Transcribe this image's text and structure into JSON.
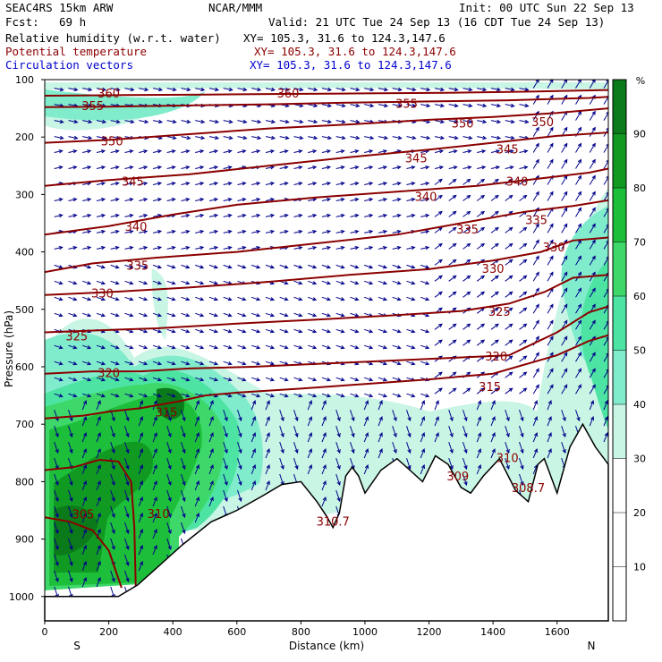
{
  "header": {
    "model": "SEAC4RS 15km ARW",
    "org": "NCAR/MMM",
    "init": "Init: 00 UTC Sun 22 Sep 13",
    "fcst_label": "Fcst:",
    "fcst_value": "69 h",
    "valid": "Valid: 21 UTC Tue 24 Sep 13 (16 CDT Tue 24 Sep 13)",
    "fields": [
      {
        "name": "Relative humidity (w.r.t. water)",
        "xy": "XY= 105.3, 31.6 to 124.3,147.6"
      },
      {
        "name": "Potential temperature",
        "xy": "XY= 105.3, 31.6 to 124.3,147.6"
      },
      {
        "name": "Circulation vectors",
        "xy": "XY= 105.3, 31.6 to 124.3,147.6"
      }
    ]
  },
  "colors": {
    "theta_contour": "#8b0000",
    "vectors": "#00008b",
    "terrain": "#000000"
  },
  "chart_data": {
    "type": "heatmap",
    "xlabel": "Distance (km)",
    "ylabel": "Pressure (hPa)",
    "xlim": [
      0,
      1760
    ],
    "ylim": [
      1000,
      100
    ],
    "x_ticks": [
      "0",
      "200",
      "400",
      "600",
      "800",
      "1000",
      "1200",
      "1400",
      "1600"
    ],
    "x_tick_values": [
      0,
      200,
      400,
      600,
      800,
      1000,
      1200,
      1400,
      1600
    ],
    "y_ticks": [
      "100",
      "200",
      "300",
      "400",
      "500",
      "600",
      "700",
      "800",
      "900",
      "1000"
    ],
    "y_tick_values": [
      100,
      200,
      300,
      400,
      500,
      600,
      700,
      800,
      900,
      1000
    ],
    "endpoints": {
      "left": "S",
      "right": "N"
    },
    "colorbar": {
      "unit": "%",
      "labels": [
        "10",
        "20",
        "30",
        "40",
        "50",
        "60",
        "70",
        "80",
        "90"
      ],
      "levels": [
        0,
        10,
        20,
        30,
        40,
        50,
        60,
        70,
        80,
        90,
        100
      ],
      "colors": [
        "#ffffff",
        "#ffffff",
        "#ffffff",
        "#c8f5e4",
        "#80eccc",
        "#4de4a3",
        "#3ed86a",
        "#1dbf3a",
        "#119a22",
        "#0a7a1a"
      ]
    },
    "theta_contours": [
      {
        "label": "305",
        "value": 305,
        "points": [
          [
            0,
            862
          ],
          [
            80,
            870
          ],
          [
            150,
            885
          ],
          [
            200,
            920
          ],
          [
            240,
            985
          ]
        ]
      },
      {
        "label": "310",
        "value": 310,
        "points": [
          [
            0,
            780
          ],
          [
            90,
            775
          ],
          [
            170,
            762
          ],
          [
            230,
            765
          ],
          [
            270,
            800
          ],
          [
            280,
            880
          ],
          [
            285,
            1000
          ]
        ]
      },
      {
        "label": "315",
        "value": 315,
        "points": [
          [
            0,
            690
          ],
          [
            120,
            685
          ],
          [
            200,
            678
          ],
          [
            300,
            672
          ],
          [
            420,
            660
          ],
          [
            500,
            650
          ],
          [
            600,
            645
          ],
          [
            800,
            638
          ],
          [
            1000,
            630
          ],
          [
            1200,
            622
          ],
          [
            1400,
            612
          ],
          [
            1600,
            580
          ],
          [
            1700,
            555
          ],
          [
            1760,
            545
          ]
        ]
      },
      {
        "label": "320",
        "value": 320,
        "points": [
          [
            0,
            612
          ],
          [
            150,
            608
          ],
          [
            300,
            608
          ],
          [
            450,
            603
          ],
          [
            650,
            600
          ],
          [
            850,
            595
          ],
          [
            1050,
            590
          ],
          [
            1250,
            585
          ],
          [
            1450,
            580
          ],
          [
            1600,
            540
          ],
          [
            1700,
            505
          ],
          [
            1760,
            495
          ]
        ]
      },
      {
        "label": "325",
        "value": 325,
        "points": [
          [
            0,
            540
          ],
          [
            150,
            537
          ],
          [
            350,
            533
          ],
          [
            600,
            525
          ],
          [
            850,
            518
          ],
          [
            1100,
            510
          ],
          [
            1300,
            503
          ],
          [
            1450,
            490
          ],
          [
            1560,
            470
          ],
          [
            1650,
            445
          ],
          [
            1760,
            440
          ]
        ]
      },
      {
        "label": "330",
        "value": 330,
        "points": [
          [
            0,
            475
          ],
          [
            200,
            470
          ],
          [
            450,
            462
          ],
          [
            700,
            452
          ],
          [
            950,
            440
          ],
          [
            1200,
            430
          ],
          [
            1400,
            415
          ],
          [
            1550,
            400
          ],
          [
            1650,
            380
          ],
          [
            1760,
            375
          ]
        ]
      },
      {
        "label": "335",
        "value": 335,
        "points": [
          [
            0,
            435
          ],
          [
            150,
            420
          ],
          [
            350,
            410
          ],
          [
            600,
            400
          ],
          [
            850,
            385
          ],
          [
            1100,
            370
          ],
          [
            1300,
            350
          ],
          [
            1500,
            330
          ],
          [
            1650,
            320
          ],
          [
            1760,
            310
          ]
        ]
      },
      {
        "label": "340",
        "value": 340,
        "points": [
          [
            0,
            370
          ],
          [
            200,
            355
          ],
          [
            400,
            335
          ],
          [
            600,
            318
          ],
          [
            850,
            305
          ],
          [
            1100,
            295
          ],
          [
            1350,
            285
          ],
          [
            1550,
            272
          ],
          [
            1700,
            262
          ],
          [
            1760,
            255
          ]
        ]
      },
      {
        "label": "345",
        "value": 345,
        "points": [
          [
            0,
            285
          ],
          [
            200,
            275
          ],
          [
            450,
            265
          ],
          [
            700,
            250
          ],
          [
            950,
            235
          ],
          [
            1200,
            222
          ],
          [
            1400,
            210
          ],
          [
            1600,
            198
          ],
          [
            1760,
            192
          ]
        ]
      },
      {
        "label": "350",
        "value": 350,
        "points": [
          [
            0,
            210
          ],
          [
            200,
            205
          ],
          [
            450,
            195
          ],
          [
            700,
            185
          ],
          [
            950,
            178
          ],
          [
            1200,
            170
          ],
          [
            1400,
            165
          ],
          [
            1600,
            158
          ],
          [
            1760,
            150
          ]
        ]
      },
      {
        "label": "355",
        "value": 355,
        "points": [
          [
            0,
            148
          ],
          [
            200,
            147
          ],
          [
            450,
            145
          ],
          [
            700,
            143
          ],
          [
            950,
            140
          ],
          [
            1200,
            138
          ],
          [
            1450,
            136
          ],
          [
            1700,
            132
          ],
          [
            1760,
            130
          ]
        ]
      },
      {
        "label": "360",
        "value": 360,
        "points": [
          [
            0,
            128
          ],
          [
            250,
            127
          ],
          [
            500,
            126
          ],
          [
            750,
            125
          ],
          [
            1000,
            124
          ],
          [
            1250,
            123
          ],
          [
            1500,
            121
          ],
          [
            1760,
            118
          ]
        ]
      }
    ],
    "theta_labels": [
      {
        "text": "360",
        "x": 200,
        "p": 125
      },
      {
        "text": "360",
        "x": 760,
        "p": 125
      },
      {
        "text": "355",
        "x": 150,
        "p": 147
      },
      {
        "text": "355",
        "x": 1130,
        "p": 143
      },
      {
        "text": "350",
        "x": 210,
        "p": 208
      },
      {
        "text": "350",
        "x": 1305,
        "p": 177
      },
      {
        "text": "350",
        "x": 1555,
        "p": 175
      },
      {
        "text": "345",
        "x": 275,
        "p": 278
      },
      {
        "text": "345",
        "x": 1160,
        "p": 238
      },
      {
        "text": "345",
        "x": 1445,
        "p": 222
      },
      {
        "text": "340",
        "x": 285,
        "p": 357
      },
      {
        "text": "340",
        "x": 1190,
        "p": 305
      },
      {
        "text": "340",
        "x": 1475,
        "p": 278
      },
      {
        "text": "335",
        "x": 290,
        "p": 425
      },
      {
        "text": "335",
        "x": 1320,
        "p": 362
      },
      {
        "text": "335",
        "x": 1535,
        "p": 345
      },
      {
        "text": "330",
        "x": 180,
        "p": 473
      },
      {
        "text": "330",
        "x": 1400,
        "p": 430
      },
      {
        "text": "330",
        "x": 1590,
        "p": 393
      },
      {
        "text": "325",
        "x": 100,
        "p": 548
      },
      {
        "text": "325",
        "x": 1420,
        "p": 505
      },
      {
        "text": "320",
        "x": 200,
        "p": 612
      },
      {
        "text": "320",
        "x": 1410,
        "p": 583
      },
      {
        "text": "315",
        "x": 380,
        "p": 680
      },
      {
        "text": "315",
        "x": 1390,
        "p": 636
      },
      {
        "text": "310",
        "x": 355,
        "p": 857
      },
      {
        "text": "310",
        "x": 1445,
        "p": 760
      },
      {
        "text": "309",
        "x": 1290,
        "p": 792
      },
      {
        "text": "308.7",
        "x": 1510,
        "p": 812
      },
      {
        "text": "310.7",
        "x": 900,
        "p": 870
      },
      {
        "text": "305",
        "x": 120,
        "p": 858
      }
    ],
    "terrain": [
      [
        0,
        1000
      ],
      [
        100,
        1000
      ],
      [
        230,
        1000
      ],
      [
        290,
        980
      ],
      [
        360,
        945
      ],
      [
        430,
        910
      ],
      [
        520,
        870
      ],
      [
        600,
        850
      ],
      [
        680,
        825
      ],
      [
        740,
        805
      ],
      [
        800,
        800
      ],
      [
        850,
        835
      ],
      [
        880,
        860
      ],
      [
        900,
        880
      ],
      [
        920,
        855
      ],
      [
        940,
        790
      ],
      [
        960,
        775
      ],
      [
        980,
        790
      ],
      [
        1000,
        820
      ],
      [
        1050,
        780
      ],
      [
        1100,
        760
      ],
      [
        1140,
        780
      ],
      [
        1180,
        800
      ],
      [
        1220,
        755
      ],
      [
        1260,
        770
      ],
      [
        1300,
        810
      ],
      [
        1330,
        820
      ],
      [
        1370,
        790
      ],
      [
        1420,
        760
      ],
      [
        1470,
        815
      ],
      [
        1510,
        835
      ],
      [
        1540,
        770
      ],
      [
        1560,
        760
      ],
      [
        1580,
        790
      ],
      [
        1600,
        820
      ],
      [
        1640,
        740
      ],
      [
        1680,
        700
      ],
      [
        1720,
        740
      ],
      [
        1760,
        770
      ]
    ]
  }
}
